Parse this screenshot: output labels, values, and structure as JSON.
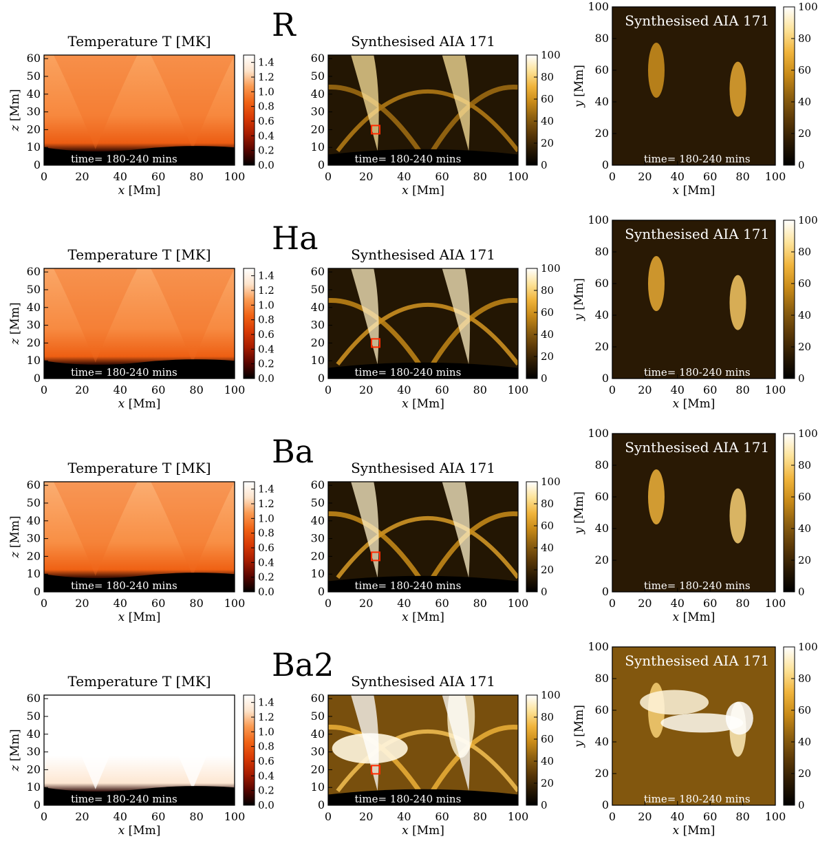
{
  "figure": {
    "rows": [
      {
        "model": "R",
        "temp_peak": 1.0,
        "aia_peak": 0.45,
        "top_peak": 0.55
      },
      {
        "model": "Ha",
        "temp_peak": 1.02,
        "aia_peak": 0.65,
        "top_peak": 0.75
      },
      {
        "model": "Ba",
        "temp_peak": 1.05,
        "aia_peak": 0.7,
        "top_peak": 0.8
      },
      {
        "model": "Ba2",
        "temp_peak": 1.5,
        "aia_peak": 1.0,
        "top_peak": 1.0
      }
    ]
  },
  "chart_data": [
    {
      "type": "heatmap",
      "panel": "temperature",
      "title": "Temperature T [MK]",
      "xlabel": "x [Mm]",
      "ylabel": "z [Mm]",
      "xlim": [
        0,
        100
      ],
      "ylim": [
        0,
        62
      ],
      "xticks": [
        0,
        20,
        40,
        60,
        80,
        100
      ],
      "yticks": [
        0,
        10,
        20,
        30,
        40,
        50,
        60
      ],
      "colorbar": {
        "ticks": [
          "0.0",
          "0.2",
          "0.4",
          "0.6",
          "0.8",
          "1.0",
          "1.2",
          "1.4"
        ],
        "range": [
          0,
          1.5
        ],
        "colormap": "red-temperature"
      },
      "annotation": "time= 180-240 mins",
      "rows": [
        "R",
        "Ha",
        "Ba",
        "Ba2"
      ]
    },
    {
      "type": "heatmap",
      "panel": "aia171-side",
      "title": "Synthesised AIA 171",
      "xlabel": "x [Mm]",
      "ylabel": "",
      "xlim": [
        0,
        100
      ],
      "ylim": [
        0,
        62
      ],
      "xticks": [
        0,
        20,
        40,
        60,
        80,
        100
      ],
      "yticks": [
        0,
        10,
        20,
        30,
        40,
        50,
        60
      ],
      "colorbar": {
        "ticks": [
          "0",
          "20",
          "40",
          "60",
          "80",
          "100"
        ],
        "range": [
          0,
          100
        ],
        "colormap": "sdoaia171"
      },
      "annotation": "time= 180-240 mins",
      "marker": {
        "x": 25,
        "z": 20,
        "color": "#ff2a00"
      },
      "rows": [
        "R",
        "Ha",
        "Ba",
        "Ba2"
      ]
    },
    {
      "type": "heatmap",
      "panel": "aia171-top",
      "title": "Synthesised AIA 171",
      "xlabel": "x [Mm]",
      "ylabel": "y [Mm]",
      "xlim": [
        0,
        100
      ],
      "ylim": [
        0,
        100
      ],
      "xticks": [
        0,
        20,
        40,
        60,
        80,
        100
      ],
      "yticks": [
        0,
        20,
        40,
        60,
        80,
        100
      ],
      "colorbar": {
        "ticks": [
          "0",
          "20",
          "40",
          "60",
          "80",
          "100"
        ],
        "range": [
          0,
          100
        ],
        "colormap": "sdoaia171"
      },
      "annotation": "time= 180-240 mins",
      "rows": [
        "R",
        "Ha",
        "Ba",
        "Ba2"
      ]
    }
  ]
}
